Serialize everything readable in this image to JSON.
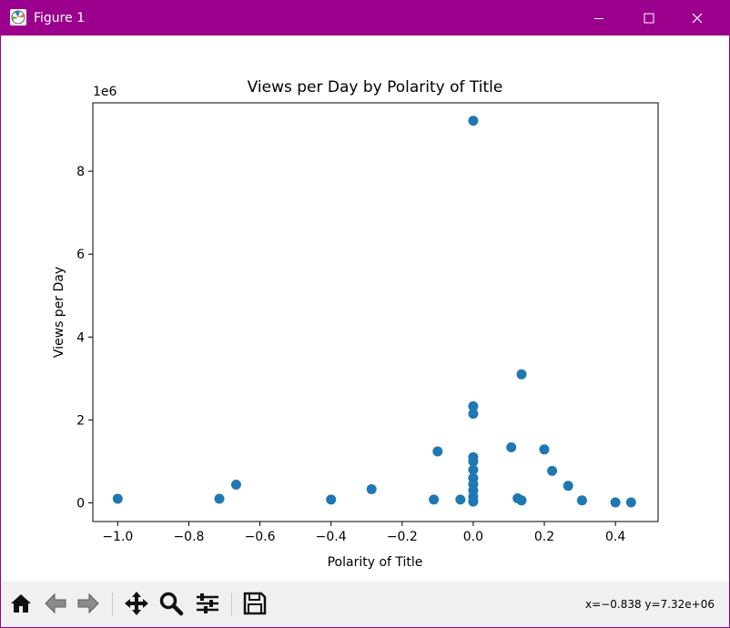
{
  "window": {
    "title": "Figure 1",
    "accent_color": "#9b008d",
    "controls": [
      "minimize-icon",
      "maximize-icon",
      "close-icon"
    ]
  },
  "toolbar": {
    "buttons": [
      "home-icon",
      "back-arrow-icon",
      "forward-arrow-icon",
      "pan-icon",
      "zoom-icon",
      "configure-subplots-icon",
      "save-icon"
    ],
    "coords": "x=−0.838 y=7.32e+06"
  },
  "chart_data": {
    "type": "scatter",
    "title": "Views per Day by Polarity of Title",
    "xlabel": "Polarity of Title",
    "ylabel": "Views per Day",
    "y_offset_label": "1e6",
    "xlim": [
      -1.07,
      0.52
    ],
    "ylim": [
      -450000,
      9650000
    ],
    "x_ticks": [
      -1.0,
      -0.8,
      -0.6,
      -0.4,
      -0.2,
      0.0,
      0.2,
      0.4
    ],
    "x_tick_labels": [
      "−1.0",
      "−0.8",
      "−0.6",
      "−0.4",
      "−0.2",
      "0.0",
      "0.2",
      "0.4"
    ],
    "y_ticks": [
      0,
      2000000,
      4000000,
      6000000,
      8000000
    ],
    "y_tick_labels": [
      "0",
      "2",
      "4",
      "6",
      "8"
    ],
    "marker_color": "#1f77b4",
    "grid": false,
    "points": [
      {
        "x": -1.0,
        "y": 100000
      },
      {
        "x": -0.714,
        "y": 100000
      },
      {
        "x": -0.667,
        "y": 440000
      },
      {
        "x": -0.4,
        "y": 80000
      },
      {
        "x": -0.286,
        "y": 330000
      },
      {
        "x": -0.111,
        "y": 80000
      },
      {
        "x": -0.1,
        "y": 1240000
      },
      {
        "x": -0.036,
        "y": 80000
      },
      {
        "x": 0.0,
        "y": 9220000
      },
      {
        "x": 0.0,
        "y": 2330000
      },
      {
        "x": 0.0,
        "y": 2150000
      },
      {
        "x": 0.0,
        "y": 1100000
      },
      {
        "x": 0.0,
        "y": 1000000
      },
      {
        "x": 0.0,
        "y": 800000
      },
      {
        "x": 0.0,
        "y": 600000
      },
      {
        "x": 0.0,
        "y": 450000
      },
      {
        "x": 0.0,
        "y": 300000
      },
      {
        "x": 0.0,
        "y": 150000
      },
      {
        "x": 0.0,
        "y": 30000
      },
      {
        "x": 0.107,
        "y": 1340000
      },
      {
        "x": 0.125,
        "y": 110000
      },
      {
        "x": 0.136,
        "y": 60000
      },
      {
        "x": 0.136,
        "y": 3100000
      },
      {
        "x": 0.2,
        "y": 1290000
      },
      {
        "x": 0.222,
        "y": 770000
      },
      {
        "x": 0.267,
        "y": 410000
      },
      {
        "x": 0.306,
        "y": 60000
      },
      {
        "x": 0.4,
        "y": 10000
      },
      {
        "x": 0.444,
        "y": 10000
      }
    ]
  }
}
